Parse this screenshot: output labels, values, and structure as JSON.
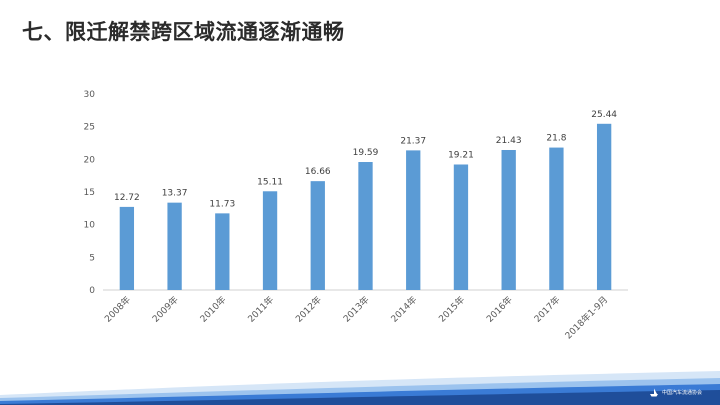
{
  "slide": {
    "title": "七、限迁解禁跨区域流通逐渐通畅"
  },
  "chart_data": {
    "type": "bar",
    "categories": [
      "2008年",
      "2009年",
      "2010年",
      "2011年",
      "2012年",
      "2013年",
      "2014年",
      "2015年",
      "2016年",
      "2017年",
      "2018年1-9月"
    ],
    "values": [
      12.72,
      13.37,
      11.73,
      15.11,
      16.66,
      19.59,
      21.37,
      19.21,
      21.43,
      21.8,
      25.44
    ],
    "value_labels": [
      "12.72",
      "13.37",
      "11.73",
      "15.11",
      "16.66",
      "19.59",
      "21.37",
      "19.21",
      "21.43",
      "21.8",
      "25.44"
    ],
    "title": "",
    "xlabel": "",
    "ylabel": "",
    "ylim": [
      0,
      30
    ],
    "yticks": [
      0,
      5,
      10,
      15,
      20,
      25,
      30
    ],
    "ytick_labels": [
      "0",
      "5",
      "10",
      "15",
      "20",
      "25",
      "30"
    ],
    "grid": false,
    "legend": "none",
    "bar_color": "#5B9BD5"
  },
  "footer": {
    "logo_icon": "ship-logo-icon",
    "band_colors": [
      "#1F4E9A",
      "#3A7BD5",
      "#9CC3EE",
      "#D6E6F7"
    ]
  }
}
